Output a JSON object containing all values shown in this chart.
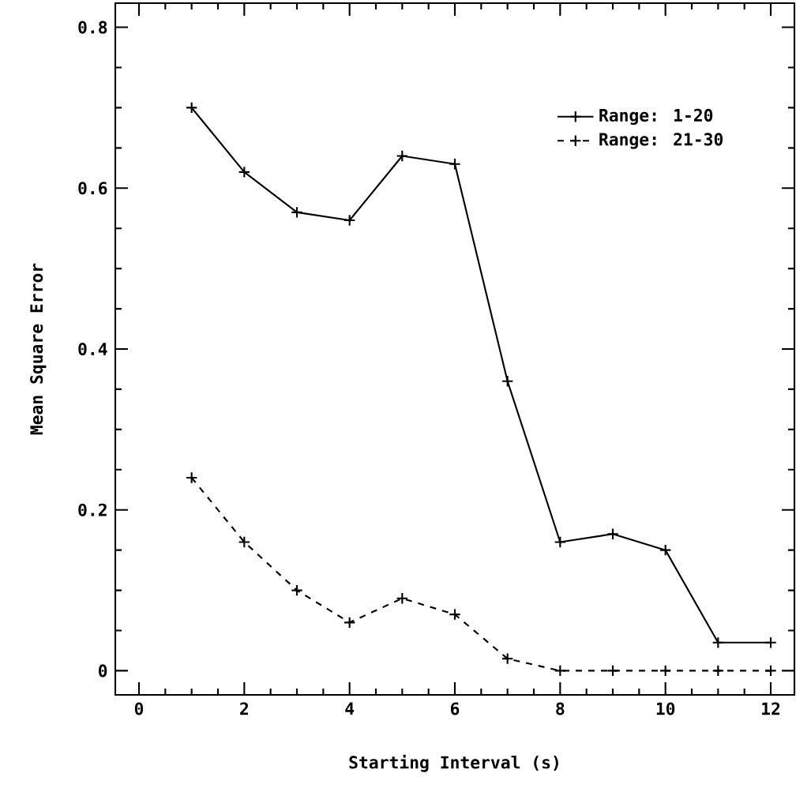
{
  "chart_data": {
    "type": "line",
    "xlabel": "Starting Interval (s)",
    "ylabel": "Mean Square Error",
    "x": [
      1,
      2,
      3,
      4,
      5,
      6,
      7,
      8,
      9,
      10,
      11,
      12
    ],
    "series": [
      {
        "name": "Range: 1-20",
        "color": "#000000",
        "line_style": "solid",
        "values": [
          0.7,
          0.62,
          0.57,
          0.56,
          0.64,
          0.63,
          0.36,
          0.16,
          0.17,
          0.15,
          0.035,
          0.035
        ]
      },
      {
        "name": "Range: 21-30",
        "color": "#000000",
        "line_style": "dashed",
        "values": [
          0.24,
          0.16,
          0.1,
          0.06,
          0.09,
          0.07,
          0.015,
          0.0,
          0.0,
          0.0,
          0.0,
          0.0
        ]
      }
    ],
    "xlim": [
      -0.45,
      12.45
    ],
    "ylim": [
      -0.03,
      0.83
    ],
    "xticks": [
      0,
      2,
      4,
      6,
      8,
      10,
      12
    ],
    "yticks": [
      0,
      0.2,
      0.4,
      0.6,
      0.8
    ],
    "marker": "cross",
    "legend": "top right",
    "grid": false
  }
}
